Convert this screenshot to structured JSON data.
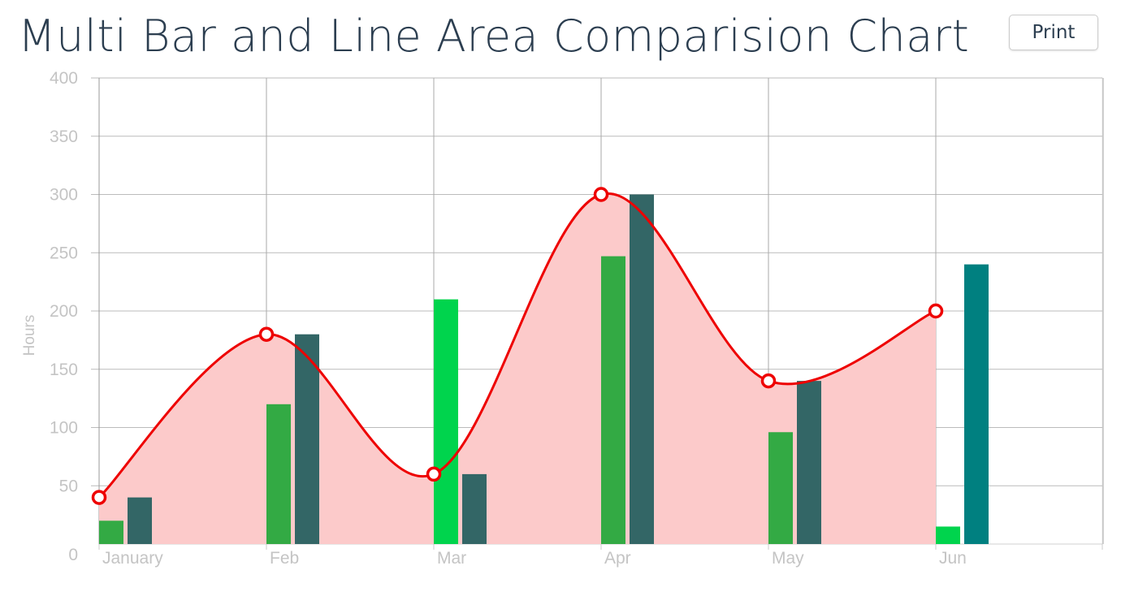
{
  "page": {
    "title": "Multi Bar and Line Area Comparision Chart",
    "print_label": "Print"
  },
  "chart_data": {
    "type": "bar",
    "categories": [
      "January",
      "Feb",
      "Mar",
      "Apr",
      "May",
      "Jun"
    ],
    "ylabel": "Hours",
    "xlabel": "",
    "ylim": [
      0,
      400
    ],
    "yticks": [
      0,
      50,
      100,
      150,
      200,
      250,
      300,
      350,
      400
    ],
    "grid": true,
    "series": [
      {
        "type": "area",
        "values": [
          40,
          180,
          60,
          300,
          140,
          200
        ],
        "color": "#ee0000",
        "fill": "#fccaca"
      },
      {
        "type": "bar",
        "values": [
          20,
          120,
          210,
          247,
          96,
          15
        ],
        "colors": [
          "#33aa44",
          "#33aa44",
          "#00d44d",
          "#33aa44",
          "#33aa44",
          "#00d44d"
        ]
      },
      {
        "type": "bar",
        "values": [
          40,
          180,
          60,
          300,
          140,
          240
        ],
        "colors": [
          "#336666",
          "#336666",
          "#336666",
          "#336666",
          "#336666",
          "#008080"
        ]
      }
    ]
  }
}
